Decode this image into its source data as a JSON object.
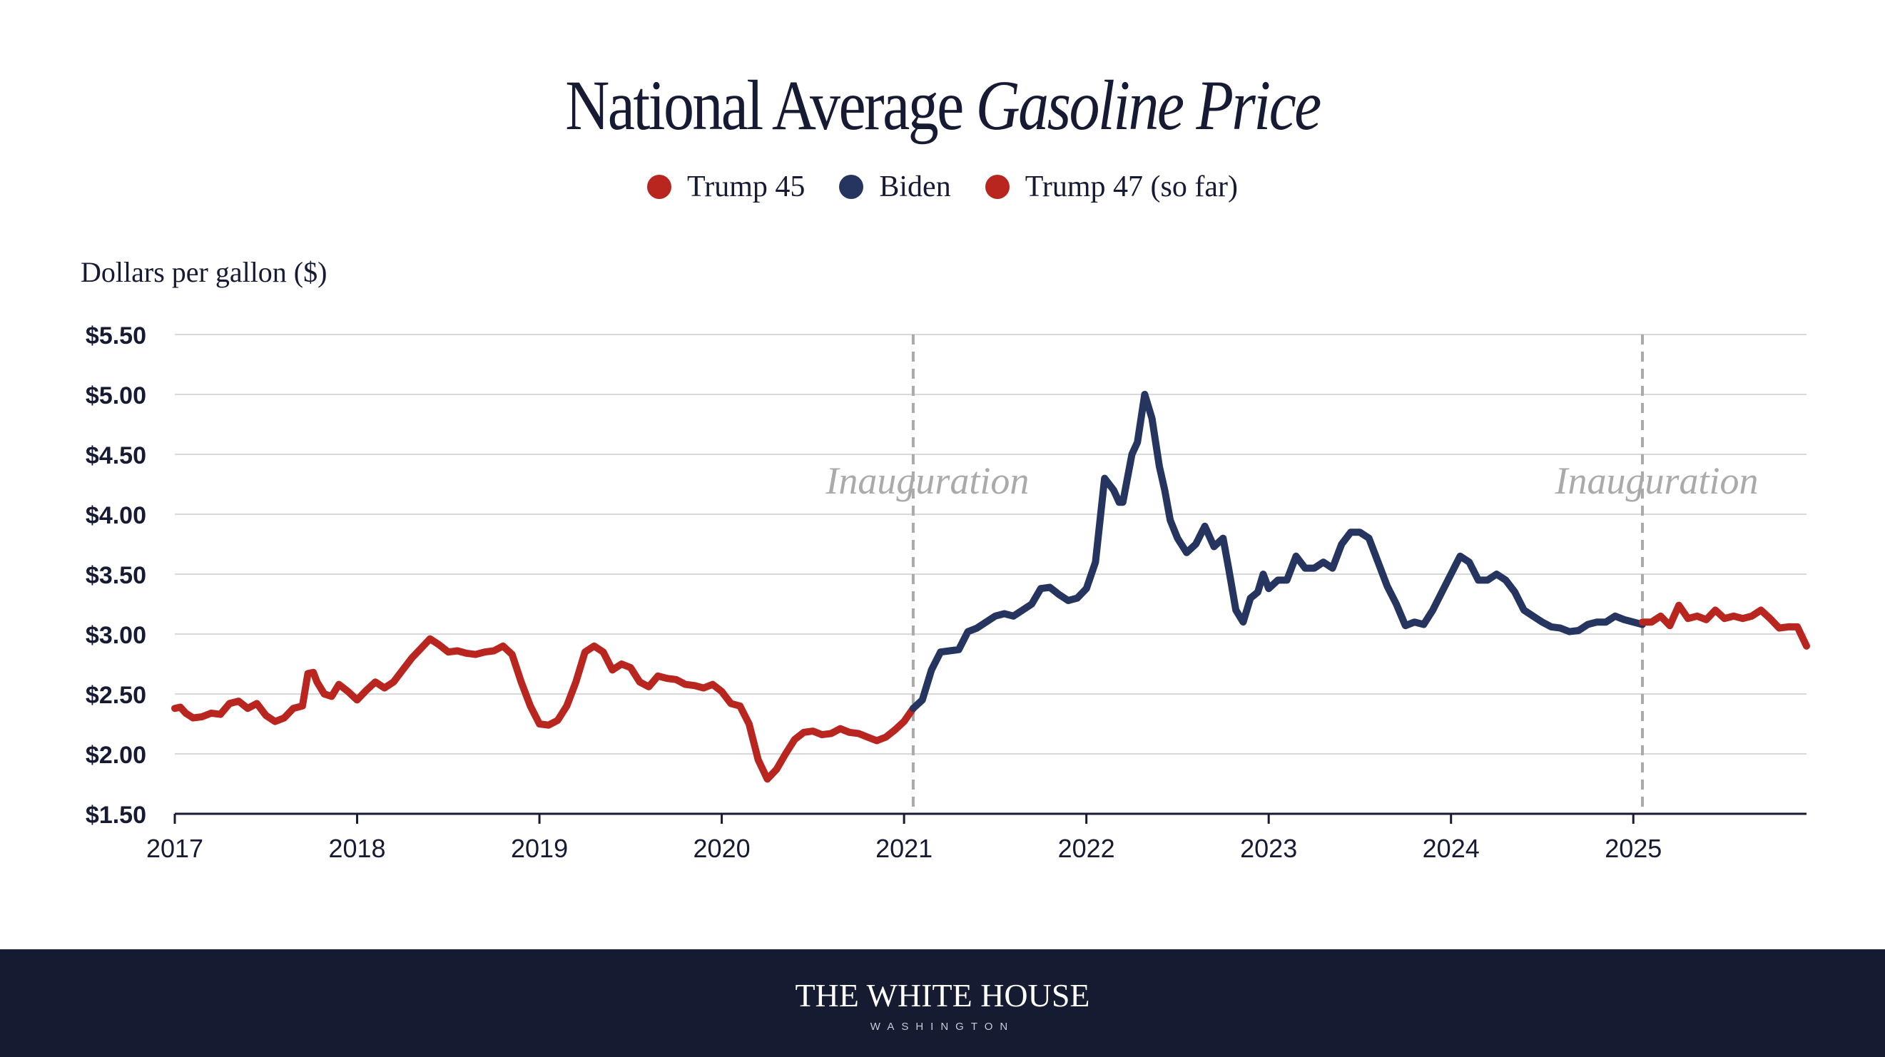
{
  "colors": {
    "trump": "#b8261f",
    "biden": "#25355f",
    "ink": "#161b33",
    "grid": "#d9d9d9",
    "annotation": "#aaaaaa",
    "footer_bg": "#151b30"
  },
  "footer": {
    "title": "THE WHITE HOUSE",
    "subtitle": "WASHINGTON"
  },
  "chart_data": {
    "type": "line",
    "title_plain": "National Average ",
    "title_italic": "Gasoline Price",
    "ylabel": "Dollars per gallon ($)",
    "xlabel": "",
    "xlim": [
      2017.0,
      2025.95
    ],
    "ylim": [
      1.5,
      5.5
    ],
    "grid": true,
    "legend_position": "top-center",
    "y_ticks": [
      {
        "value": 1.5,
        "label": "$1.50"
      },
      {
        "value": 2.0,
        "label": "$2.00"
      },
      {
        "value": 2.5,
        "label": "$2.50"
      },
      {
        "value": 3.0,
        "label": "$3.00"
      },
      {
        "value": 3.5,
        "label": "$3.50"
      },
      {
        "value": 4.0,
        "label": "$4.00"
      },
      {
        "value": 4.5,
        "label": "$4.50"
      },
      {
        "value": 5.0,
        "label": "$5.00"
      },
      {
        "value": 5.5,
        "label": "$5.50"
      }
    ],
    "x_ticks": [
      {
        "value": 2017,
        "label": "2017"
      },
      {
        "value": 2018,
        "label": "2018"
      },
      {
        "value": 2019,
        "label": "2019"
      },
      {
        "value": 2020,
        "label": "2020"
      },
      {
        "value": 2021,
        "label": "2021"
      },
      {
        "value": 2022,
        "label": "2022"
      },
      {
        "value": 2023,
        "label": "2023"
      },
      {
        "value": 2024,
        "label": "2024"
      },
      {
        "value": 2025,
        "label": "2025"
      }
    ],
    "annotations": [
      {
        "x": 2021.05,
        "label": "Inauguration"
      },
      {
        "x": 2025.05,
        "label": "Inauguration"
      }
    ],
    "series": [
      {
        "name": "Trump 45",
        "color": "#b8261f",
        "x": [
          2017.0,
          2017.03,
          2017.06,
          2017.1,
          2017.15,
          2017.2,
          2017.25,
          2017.3,
          2017.35,
          2017.4,
          2017.45,
          2017.5,
          2017.55,
          2017.6,
          2017.65,
          2017.7,
          2017.73,
          2017.76,
          2017.78,
          2017.82,
          2017.86,
          2017.9,
          2017.95,
          2018.0,
          2018.05,
          2018.1,
          2018.15,
          2018.2,
          2018.25,
          2018.3,
          2018.35,
          2018.4,
          2018.45,
          2018.5,
          2018.55,
          2018.6,
          2018.65,
          2018.7,
          2018.75,
          2018.8,
          2018.85,
          2018.9,
          2018.95,
          2019.0,
          2019.05,
          2019.1,
          2019.15,
          2019.2,
          2019.25,
          2019.3,
          2019.35,
          2019.4,
          2019.45,
          2019.5,
          2019.55,
          2019.6,
          2019.65,
          2019.7,
          2019.75,
          2019.8,
          2019.85,
          2019.9,
          2019.95,
          2020.0,
          2020.05,
          2020.1,
          2020.15,
          2020.2,
          2020.25,
          2020.3,
          2020.35,
          2020.4,
          2020.45,
          2020.5,
          2020.55,
          2020.6,
          2020.65,
          2020.7,
          2020.75,
          2020.8,
          2020.85,
          2020.9,
          2020.95,
          2021.0,
          2021.05
        ],
        "y": [
          2.38,
          2.39,
          2.34,
          2.3,
          2.31,
          2.34,
          2.33,
          2.42,
          2.44,
          2.38,
          2.42,
          2.32,
          2.27,
          2.3,
          2.38,
          2.4,
          2.67,
          2.68,
          2.6,
          2.5,
          2.48,
          2.58,
          2.52,
          2.45,
          2.53,
          2.6,
          2.55,
          2.6,
          2.7,
          2.8,
          2.88,
          2.96,
          2.91,
          2.85,
          2.86,
          2.84,
          2.83,
          2.85,
          2.86,
          2.9,
          2.83,
          2.6,
          2.4,
          2.25,
          2.24,
          2.28,
          2.4,
          2.6,
          2.85,
          2.9,
          2.85,
          2.7,
          2.75,
          2.72,
          2.6,
          2.56,
          2.65,
          2.63,
          2.62,
          2.58,
          2.57,
          2.55,
          2.58,
          2.52,
          2.42,
          2.4,
          2.25,
          1.95,
          1.79,
          1.87,
          2.0,
          2.12,
          2.18,
          2.19,
          2.16,
          2.17,
          2.21,
          2.18,
          2.17,
          2.14,
          2.11,
          2.14,
          2.2,
          2.27,
          2.38
        ]
      },
      {
        "name": "Biden",
        "color": "#25355f",
        "x": [
          2021.05,
          2021.1,
          2021.15,
          2021.2,
          2021.25,
          2021.3,
          2021.35,
          2021.4,
          2021.45,
          2021.5,
          2021.55,
          2021.6,
          2021.65,
          2021.7,
          2021.75,
          2021.8,
          2021.85,
          2021.9,
          2021.95,
          2022.0,
          2022.05,
          2022.1,
          2022.15,
          2022.18,
          2022.2,
          2022.25,
          2022.28,
          2022.32,
          2022.36,
          2022.4,
          2022.43,
          2022.46,
          2022.5,
          2022.55,
          2022.6,
          2022.65,
          2022.7,
          2022.75,
          2022.78,
          2022.82,
          2022.86,
          2022.9,
          2022.94,
          2022.97,
          2023.0,
          2023.05,
          2023.1,
          2023.15,
          2023.2,
          2023.25,
          2023.3,
          2023.35,
          2023.4,
          2023.45,
          2023.5,
          2023.55,
          2023.6,
          2023.65,
          2023.7,
          2023.75,
          2023.8,
          2023.85,
          2023.9,
          2023.95,
          2024.0,
          2024.05,
          2024.1,
          2024.15,
          2024.2,
          2024.25,
          2024.3,
          2024.35,
          2024.4,
          2024.45,
          2024.5,
          2024.55,
          2024.6,
          2024.65,
          2024.7,
          2024.75,
          2024.8,
          2024.85,
          2024.9,
          2024.95,
          2025.0,
          2025.05
        ],
        "y": [
          2.38,
          2.45,
          2.7,
          2.85,
          2.86,
          2.87,
          3.02,
          3.05,
          3.1,
          3.15,
          3.17,
          3.15,
          3.2,
          3.25,
          3.38,
          3.39,
          3.33,
          3.28,
          3.3,
          3.38,
          3.6,
          4.3,
          4.2,
          4.1,
          4.1,
          4.5,
          4.6,
          5.0,
          4.8,
          4.4,
          4.2,
          3.95,
          3.8,
          3.68,
          3.75,
          3.9,
          3.73,
          3.8,
          3.55,
          3.2,
          3.1,
          3.3,
          3.35,
          3.5,
          3.38,
          3.45,
          3.45,
          3.65,
          3.55,
          3.55,
          3.6,
          3.55,
          3.75,
          3.85,
          3.85,
          3.8,
          3.6,
          3.4,
          3.25,
          3.07,
          3.1,
          3.08,
          3.2,
          3.35,
          3.5,
          3.65,
          3.6,
          3.45,
          3.45,
          3.5,
          3.45,
          3.35,
          3.2,
          3.15,
          3.1,
          3.06,
          3.05,
          3.02,
          3.03,
          3.08,
          3.1,
          3.1,
          3.15,
          3.12,
          3.1,
          3.08
        ]
      },
      {
        "name": "Trump 47 (so far)",
        "color": "#b8261f",
        "x": [
          2025.05,
          2025.1,
          2025.15,
          2025.2,
          2025.25,
          2025.3,
          2025.35,
          2025.4,
          2025.45,
          2025.5,
          2025.55,
          2025.6,
          2025.65,
          2025.7,
          2025.75,
          2025.8,
          2025.85,
          2025.9,
          2025.95
        ],
        "y": [
          3.1,
          3.1,
          3.15,
          3.07,
          3.24,
          3.13,
          3.15,
          3.12,
          3.2,
          3.13,
          3.15,
          3.13,
          3.15,
          3.2,
          3.13,
          3.05,
          3.06,
          3.06,
          2.9
        ]
      }
    ]
  }
}
